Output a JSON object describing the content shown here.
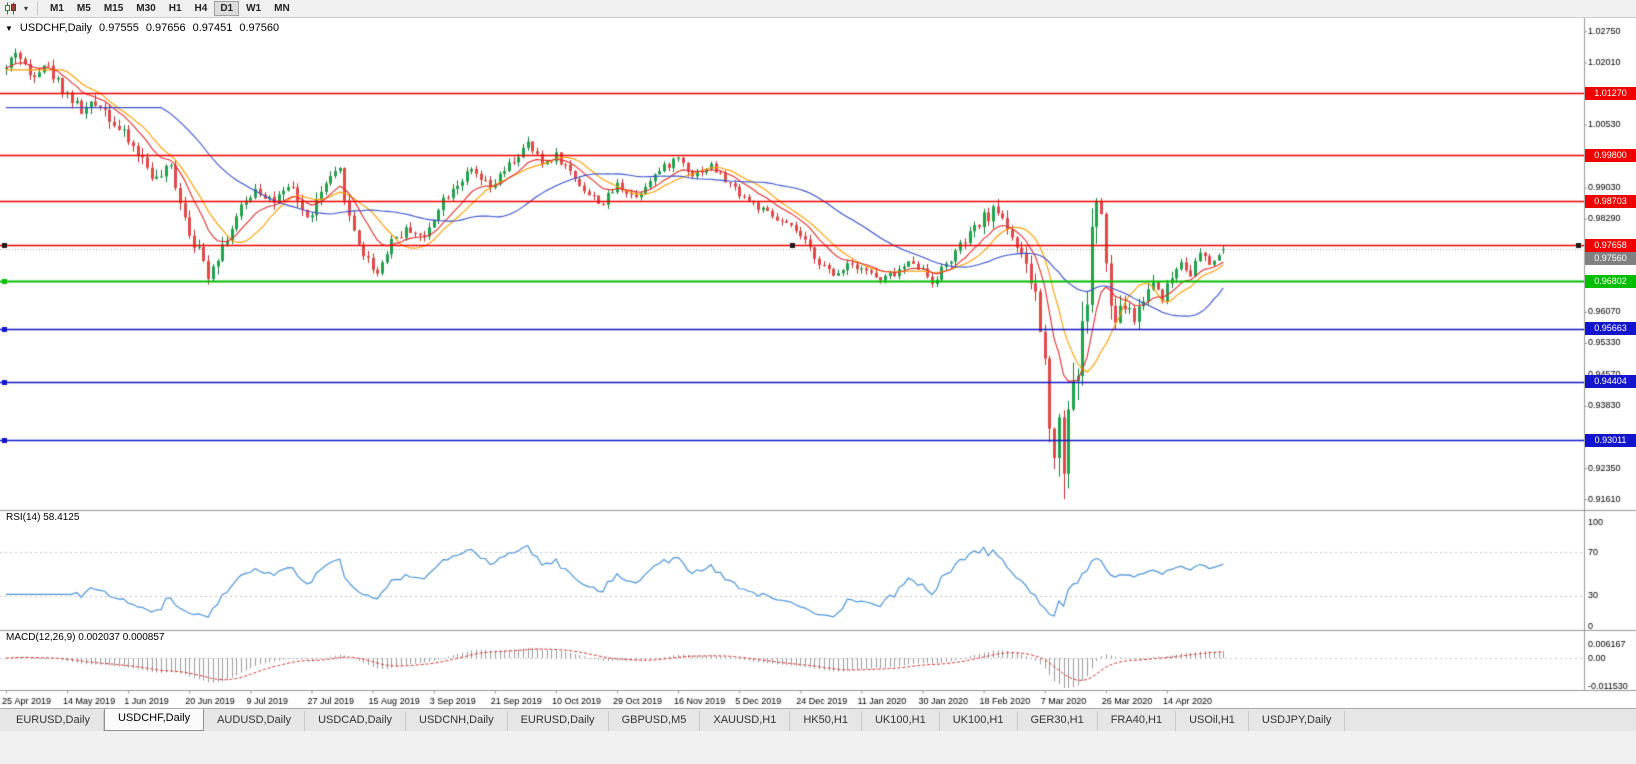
{
  "icons": {
    "collapse_triangle": "▼",
    "dropdown_caret": "▾"
  },
  "toolbar": {
    "timeframes": [
      "M1",
      "M5",
      "M15",
      "M30",
      "H1",
      "H4",
      "D1",
      "W1",
      "MN"
    ],
    "active_timeframe": "D1"
  },
  "chart_header": {
    "symbol_label": "USDCHF,Daily",
    "open": "0.97555",
    "high": "0.97656",
    "low": "0.97451",
    "close": "0.97560"
  },
  "price_axis": {
    "ticks": [
      {
        "value": 1.0275,
        "label": "1.02750"
      },
      {
        "value": 1.0201,
        "label": "1.02010"
      },
      {
        "value": 1.0053,
        "label": "1.00530"
      },
      {
        "value": 0.9903,
        "label": "0.99030"
      },
      {
        "value": 0.9829,
        "label": "0.98290"
      },
      {
        "value": 0.9607,
        "label": "0.96070"
      },
      {
        "value": 0.9533,
        "label": "0.95330"
      },
      {
        "value": 0.9457,
        "label": "0.94570"
      },
      {
        "value": 0.9383,
        "label": "0.93830"
      },
      {
        "value": 0.9235,
        "label": "0.92350"
      },
      {
        "value": 0.9161,
        "label": "0.91610"
      }
    ]
  },
  "hlines": [
    {
      "price": 1.0127,
      "label": "1.01270",
      "color": "#f20000",
      "width": 1.4,
      "markers": "none"
    },
    {
      "price": 0.998,
      "label": "0.99800",
      "color": "#f20000",
      "width": 1.4,
      "markers": "none"
    },
    {
      "price": 0.98703,
      "label": "0.98703",
      "color": "#f20000",
      "width": 1.4,
      "markers": "none"
    },
    {
      "price": 0.97658,
      "label": "0.97658",
      "color": "#f20000",
      "width": 1.7,
      "markers": "selected"
    },
    {
      "price": 0.96802,
      "label": "0.96802",
      "color": "#00bd00",
      "width": 1.8,
      "markers": "left"
    },
    {
      "price": 0.95663,
      "label": "0.95663",
      "color": "#1414cc",
      "width": 1.6,
      "markers": "left"
    },
    {
      "price": 0.94404,
      "label": "0.94404",
      "color": "#1414cc",
      "width": 1.6,
      "markers": "left"
    },
    {
      "price": 0.93011,
      "label": "0.93011",
      "color": "#1414cc",
      "width": 1.6,
      "markers": "left"
    }
  ],
  "current_price": {
    "value": 0.9756,
    "label": "0.97560",
    "box_color": "#808080",
    "line_color": "#aaaaaa"
  },
  "rsi": {
    "name": "RSI(14)",
    "value": "58.4125",
    "period": 14,
    "levels": [
      70,
      30
    ],
    "axis": [
      {
        "value": 100,
        "label": "100"
      },
      {
        "value": 70,
        "label": "70"
      },
      {
        "value": 30,
        "label": "30"
      },
      {
        "value": 0,
        "label": "0"
      }
    ],
    "color": "#4f96d8"
  },
  "macd": {
    "name": "MACD(12,26,9)",
    "values": "0.002037 0.000857",
    "fast": 12,
    "slow": 26,
    "signal_period": 9,
    "max": 0.006167,
    "min": -0.01153,
    "axis": [
      {
        "value": 0.006167,
        "label": "0.006167"
      },
      {
        "value": 0,
        "label": "0.00"
      },
      {
        "value": -0.01153,
        "label": "-0.011530"
      }
    ],
    "histogram_color": "#9c9c9c",
    "signal_color": "#d93636"
  },
  "x_axis": {
    "label_step": 13,
    "labels": [
      "25 Apr 2019",
      "14 May 2019",
      "1 Jun 2019",
      "20 Jun 2019",
      "9 Jul 2019",
      "27 Jul 2019",
      "15 Aug 2019",
      "3 Sep 2019",
      "21 Sep 2019",
      "10 Oct 2019",
      "29 Oct 2019",
      "16 Nov 2019",
      "5 Dec 2019",
      "24 Dec 2019",
      "11 Jan 2020",
      "30 Jan 2020",
      "18 Feb 2020",
      "7 Mar 2020",
      "26 Mar 2020",
      "14 Apr 2020"
    ]
  },
  "chart_data": {
    "type": "candlestick",
    "symbol": "USDCHF",
    "timeframe": "Daily",
    "n_candles": 260,
    "seed": 42,
    "price_range": [
      0.914,
      1.029
    ],
    "high_clamp": 1.0262,
    "low_clamp": 0.9161,
    "low_extreme": {
      "index": 225,
      "price": 0.9161
    },
    "last_candle": {
      "o": 0.97555,
      "h": 0.97656,
      "l": 0.97451,
      "c": 0.9756
    },
    "close_anchors": [
      [
        0,
        1.0185
      ],
      [
        2,
        1.023
      ],
      [
        5,
        1.017
      ],
      [
        8,
        1.02
      ],
      [
        12,
        1.014
      ],
      [
        16,
        1.0085
      ],
      [
        20,
        1.0105
      ],
      [
        24,
        1.004
      ],
      [
        28,
        0.9985
      ],
      [
        32,
        0.992
      ],
      [
        35,
        0.995
      ],
      [
        39,
        0.98
      ],
      [
        43,
        0.97
      ],
      [
        46,
        0.9765
      ],
      [
        50,
        0.985
      ],
      [
        53,
        0.9905
      ],
      [
        57,
        0.987
      ],
      [
        61,
        0.99
      ],
      [
        64,
        0.9825
      ],
      [
        68,
        0.991
      ],
      [
        71,
        0.994
      ],
      [
        73,
        0.983
      ],
      [
        76,
        0.9745
      ],
      [
        79,
        0.97
      ],
      [
        82,
        0.978
      ],
      [
        86,
        0.9805
      ],
      [
        89,
        0.978
      ],
      [
        92,
        0.986
      ],
      [
        95,
        0.9905
      ],
      [
        99,
        0.994
      ],
      [
        103,
        0.99
      ],
      [
        107,
        0.9955
      ],
      [
        111,
        1.0005
      ],
      [
        114,
        0.996
      ],
      [
        117,
        0.998
      ],
      [
        120,
        0.994
      ],
      [
        124,
        0.9885
      ],
      [
        127,
        0.9865
      ],
      [
        130,
        0.991
      ],
      [
        134,
        0.988
      ],
      [
        137,
        0.9925
      ],
      [
        140,
        0.995
      ],
      [
        143,
        0.9975
      ],
      [
        146,
        0.9935
      ],
      [
        150,
        0.9955
      ],
      [
        153,
        0.992
      ],
      [
        156,
        0.989
      ],
      [
        160,
        0.9855
      ],
      [
        164,
        0.9825
      ],
      [
        168,
        0.98
      ],
      [
        172,
        0.974
      ],
      [
        176,
        0.969
      ],
      [
        179,
        0.9725
      ],
      [
        182,
        0.9715
      ],
      [
        186,
        0.968
      ],
      [
        190,
        0.9705
      ],
      [
        193,
        0.973
      ],
      [
        197,
        0.968
      ],
      [
        200,
        0.972
      ],
      [
        204,
        0.9775
      ],
      [
        208,
        0.983
      ],
      [
        211,
        0.985
      ],
      [
        214,
        0.979
      ],
      [
        217,
        0.9705
      ],
      [
        219,
        0.965
      ],
      [
        221,
        0.948
      ],
      [
        222,
        0.937
      ],
      [
        223,
        0.928
      ],
      [
        224,
        0.9335
      ],
      [
        225,
        0.925
      ],
      [
        226,
        0.939
      ],
      [
        227,
        0.9445
      ],
      [
        228,
        0.948
      ],
      [
        229,
        0.9555
      ],
      [
        230,
        0.965
      ],
      [
        231,
        0.979
      ],
      [
        232,
        0.988
      ],
      [
        233,
        0.9835
      ],
      [
        234,
        0.97
      ],
      [
        235,
        0.962
      ],
      [
        236,
        0.958
      ],
      [
        238,
        0.9625
      ],
      [
        240,
        0.959
      ],
      [
        242,
        0.964
      ],
      [
        244,
        0.968
      ],
      [
        246,
        0.9645
      ],
      [
        248,
        0.969
      ],
      [
        250,
        0.973
      ],
      [
        252,
        0.97
      ],
      [
        254,
        0.9745
      ],
      [
        256,
        0.972
      ],
      [
        258,
        0.9742
      ],
      [
        259,
        0.9756
      ]
    ],
    "volatility_anchors": [
      [
        0,
        0.0028
      ],
      [
        20,
        0.003
      ],
      [
        43,
        0.0032
      ],
      [
        80,
        0.0026
      ],
      [
        120,
        0.002
      ],
      [
        160,
        0.0018
      ],
      [
        200,
        0.0022
      ],
      [
        216,
        0.0035
      ],
      [
        221,
        0.0075
      ],
      [
        224,
        0.0105
      ],
      [
        228,
        0.0085
      ],
      [
        232,
        0.0075
      ],
      [
        236,
        0.005
      ],
      [
        242,
        0.0032
      ],
      [
        250,
        0.0024
      ],
      [
        259,
        0.0018
      ]
    ],
    "moving_averages": [
      {
        "period": 13,
        "method": "sma",
        "color": "#ff9d00"
      },
      {
        "period": 10,
        "method": "ema",
        "color": "#e03030"
      },
      {
        "period": 34,
        "method": "sma",
        "color": "#3b52c9"
      }
    ],
    "candle_colors": {
      "bull": "#21a24e",
      "bear": "#e04a4a",
      "bull_wick": "#157d39",
      "bear_wick": "#c03030"
    }
  },
  "tabs": {
    "active_index": 1,
    "items": [
      "EURUSD,Daily",
      "USDCHF,Daily",
      "AUDUSD,Daily",
      "USDCAD,Daily",
      "USDCNH,Daily",
      "EURUSD,Daily",
      "GBPUSD,M5",
      "XAUUSD,H1",
      "HK50,H1",
      "UK100,H1",
      "UK100,H1",
      "GER30,H1",
      "FRA40,H1",
      "USOil,H1",
      "USDJPY,Daily"
    ]
  }
}
